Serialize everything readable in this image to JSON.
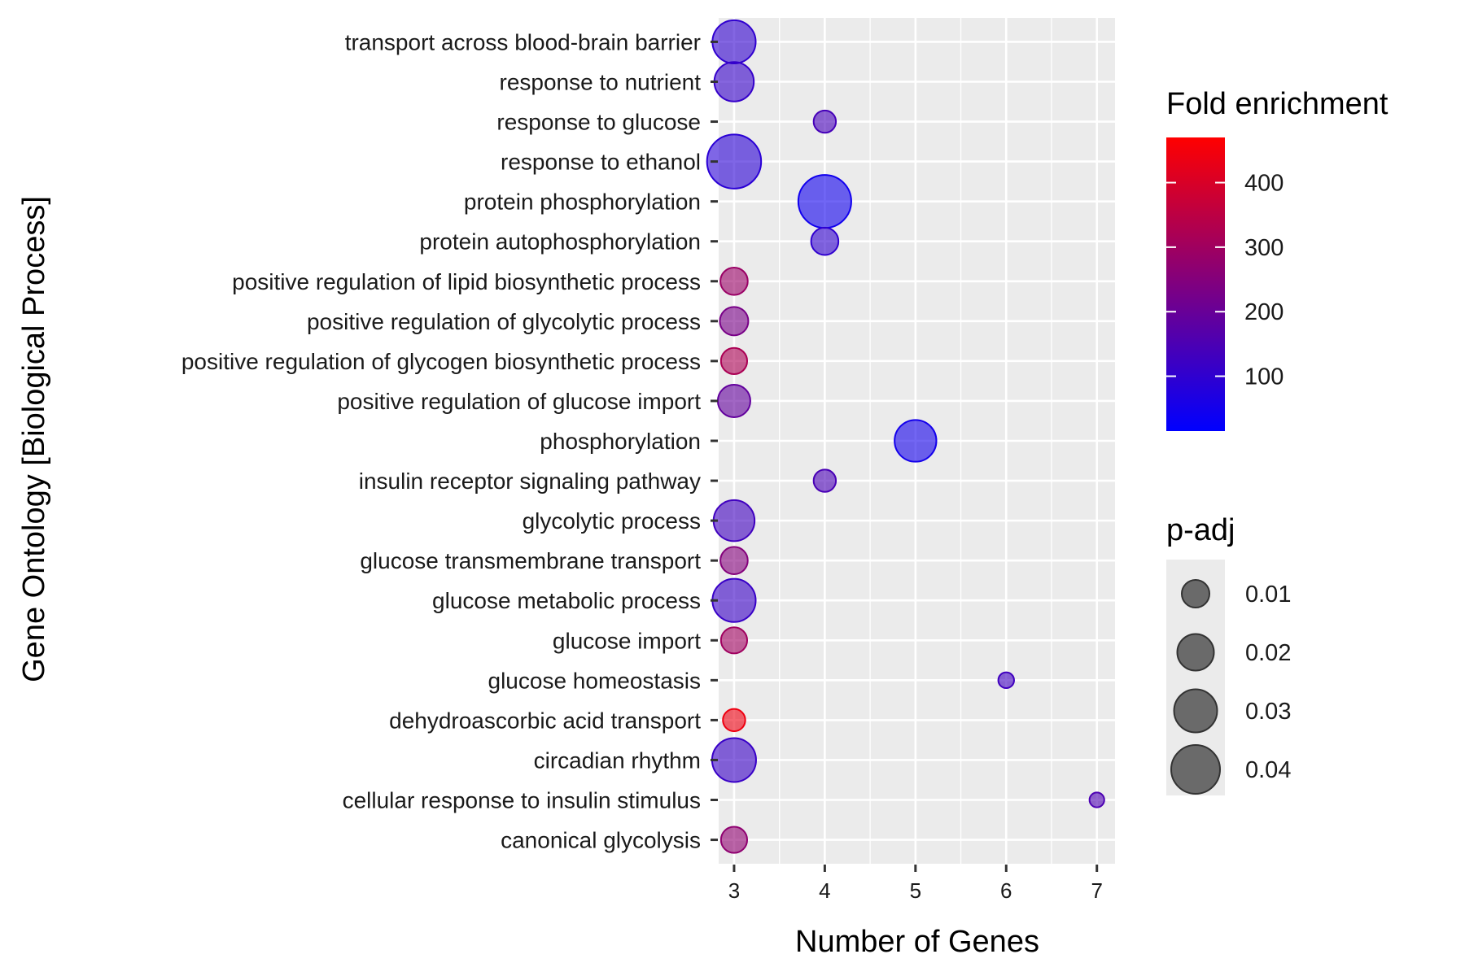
{
  "chart_data": {
    "type": "scatter",
    "xlabel": "Number of Genes",
    "ylabel": "Gene Ontology [Biological Process]",
    "xlim": [
      2.83,
      7.2
    ],
    "x_ticks": [
      3,
      4,
      5,
      6,
      7
    ],
    "grid": true,
    "categories": [
      "transport across blood-brain barrier",
      "response to nutrient",
      "response to glucose",
      "response to ethanol",
      "protein phosphorylation",
      "protein autophosphorylation",
      "positive regulation of lipid biosynthetic process",
      "positive regulation of glycolytic process",
      "positive regulation of glycogen biosynthetic process",
      "positive regulation of glucose import",
      "phosphorylation",
      "insulin receptor signaling pathway",
      "glycolytic process",
      "glucose transmembrane transport",
      "glucose metabolic process",
      "glucose import",
      "glucose homeostasis",
      "dehydroascorbic acid transport",
      "circadian rhythm",
      "cellular response to insulin stimulus",
      "canonical glycolysis"
    ],
    "points": [
      {
        "category": "transport across blood-brain barrier",
        "x": 3,
        "fold_enrichment": 100,
        "p_adj": 0.03
      },
      {
        "category": "response to nutrient",
        "x": 3,
        "fold_enrichment": 110,
        "p_adj": 0.025
      },
      {
        "category": "response to glucose",
        "x": 4,
        "fold_enrichment": 140,
        "p_adj": 0.008
      },
      {
        "category": "response to ethanol",
        "x": 3,
        "fold_enrichment": 90,
        "p_adj": 0.047
      },
      {
        "category": "protein phosphorylation",
        "x": 4,
        "fold_enrichment": 45,
        "p_adj": 0.045
      },
      {
        "category": "protein autophosphorylation",
        "x": 4,
        "fold_enrichment": 100,
        "p_adj": 0.012
      },
      {
        "category": "positive regulation of lipid biosynthetic process",
        "x": 3,
        "fold_enrichment": 290,
        "p_adj": 0.012
      },
      {
        "category": "positive regulation of glycolytic process",
        "x": 3,
        "fold_enrichment": 230,
        "p_adj": 0.013
      },
      {
        "category": "positive regulation of glycogen biosynthetic process",
        "x": 3,
        "fold_enrichment": 320,
        "p_adj": 0.011
      },
      {
        "category": "positive regulation of glucose import",
        "x": 3,
        "fold_enrichment": 190,
        "p_adj": 0.017
      },
      {
        "category": "phosphorylation",
        "x": 5,
        "fold_enrichment": 50,
        "p_adj": 0.028
      },
      {
        "category": "insulin receptor signaling pathway",
        "x": 4,
        "fold_enrichment": 145,
        "p_adj": 0.008
      },
      {
        "category": "glycolytic process",
        "x": 3,
        "fold_enrichment": 130,
        "p_adj": 0.027
      },
      {
        "category": "glucose transmembrane transport",
        "x": 3,
        "fold_enrichment": 250,
        "p_adj": 0.012
      },
      {
        "category": "glucose metabolic process",
        "x": 3,
        "fold_enrichment": 115,
        "p_adj": 0.03
      },
      {
        "category": "glucose import",
        "x": 3,
        "fold_enrichment": 300,
        "p_adj": 0.011
      },
      {
        "category": "glucose homeostasis",
        "x": 6,
        "fold_enrichment": 130,
        "p_adj": 0.004
      },
      {
        "category": "dehydroascorbic acid transport",
        "x": 3,
        "fold_enrichment": 440,
        "p_adj": 0.008
      },
      {
        "category": "circadian rhythm",
        "x": 3,
        "fold_enrichment": 115,
        "p_adj": 0.031
      },
      {
        "category": "cellular response to insulin stimulus",
        "x": 7,
        "fold_enrichment": 150,
        "p_adj": 0.0035
      },
      {
        "category": "canonical glycolysis",
        "x": 3,
        "fold_enrichment": 270,
        "p_adj": 0.011
      }
    ],
    "color_legend": {
      "title": "Fold enrichment",
      "range": [
        15,
        470
      ],
      "ticks": [
        100,
        200,
        300,
        400
      ],
      "low_color": "#0000FF",
      "high_color": "#FF0000"
    },
    "size_legend": {
      "title": "p-adj",
      "values": [
        0.01,
        0.02,
        0.03,
        0.04
      ],
      "labels": [
        "0.01",
        "0.02",
        "0.03",
        "0.04"
      ]
    },
    "panel_background": "#EBEBEB",
    "point_opacity": 0.6
  }
}
